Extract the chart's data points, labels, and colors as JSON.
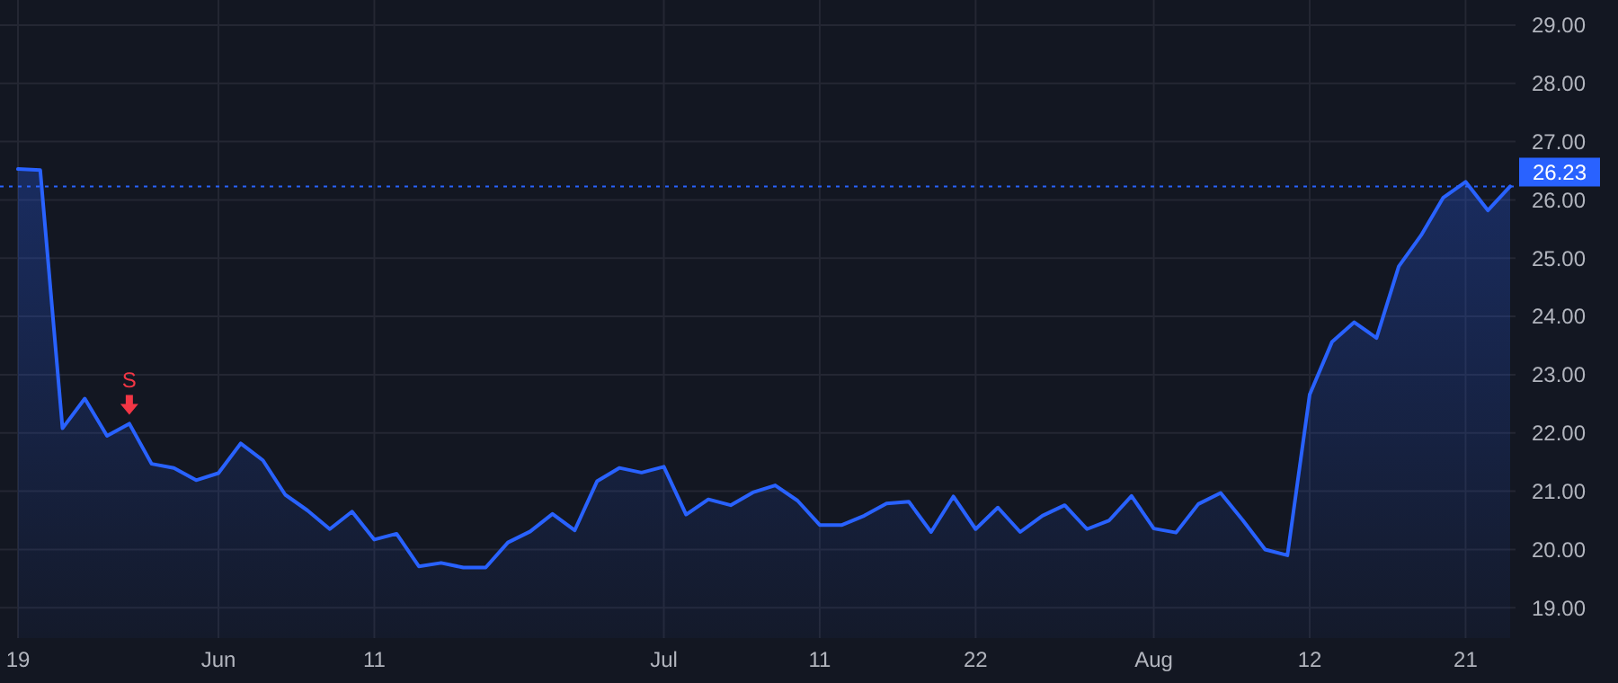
{
  "chart_data": {
    "type": "area",
    "categories": [
      "19",
      null,
      null,
      null,
      null,
      null,
      null,
      null,
      null,
      "Jun",
      null,
      null,
      null,
      null,
      null,
      null,
      "11",
      null,
      null,
      null,
      null,
      null,
      null,
      null,
      null,
      null,
      null,
      null,
      null,
      "Jul",
      null,
      null,
      null,
      null,
      null,
      null,
      "11",
      null,
      null,
      null,
      null,
      null,
      null,
      "22",
      null,
      null,
      null,
      null,
      null,
      null,
      null,
      "Aug",
      null,
      null,
      null,
      null,
      null,
      null,
      "12",
      null,
      null,
      null,
      null,
      null,
      null,
      "21",
      null,
      null
    ],
    "series": [
      {
        "color": "#2962ff",
        "values": [
          26.53,
          26.51,
          22.08,
          22.59,
          21.95,
          22.16,
          21.47,
          21.4,
          21.19,
          21.31,
          21.82,
          21.53,
          20.94,
          20.67,
          20.35,
          20.65,
          20.17,
          20.27,
          19.71,
          19.77,
          19.69,
          19.69,
          20.12,
          20.31,
          20.61,
          20.33,
          21.17,
          21.4,
          21.32,
          21.42,
          20.6,
          20.86,
          20.76,
          20.98,
          21.1,
          20.84,
          20.42,
          20.42,
          20.58,
          20.79,
          20.82,
          20.3,
          20.91,
          20.35,
          20.72,
          20.3,
          20.58,
          20.76,
          20.35,
          20.5,
          20.92,
          20.36,
          20.29,
          20.78,
          20.97,
          20.5,
          20.0,
          19.9,
          22.66,
          23.56,
          23.9,
          23.63,
          24.86,
          25.39,
          26.04,
          26.31,
          25.82,
          26.23
        ]
      }
    ],
    "ylim": [
      18.48,
      29.43
    ],
    "yticks": [
      {
        "value": 19,
        "label": "19.00"
      },
      {
        "value": 20,
        "label": "20.00"
      },
      {
        "value": 21,
        "label": "21.00"
      },
      {
        "value": 22,
        "label": "22.00"
      },
      {
        "value": 23,
        "label": "23.00"
      },
      {
        "value": 24,
        "label": "24.00"
      },
      {
        "value": 25,
        "label": "25.00"
      },
      {
        "value": 26,
        "label": "26.00"
      },
      {
        "value": 27,
        "label": "27.00"
      },
      {
        "value": 28,
        "label": "28.00"
      },
      {
        "value": 29,
        "label": "29.00"
      }
    ],
    "grid": true,
    "ref_lines": [
      {
        "axis": "y",
        "value": 26.23,
        "label": "26.23",
        "color": "#2962ff",
        "line_style": "dotted"
      }
    ],
    "annotations": [
      {
        "text": "S",
        "y": 22.16
      }
    ]
  }
}
